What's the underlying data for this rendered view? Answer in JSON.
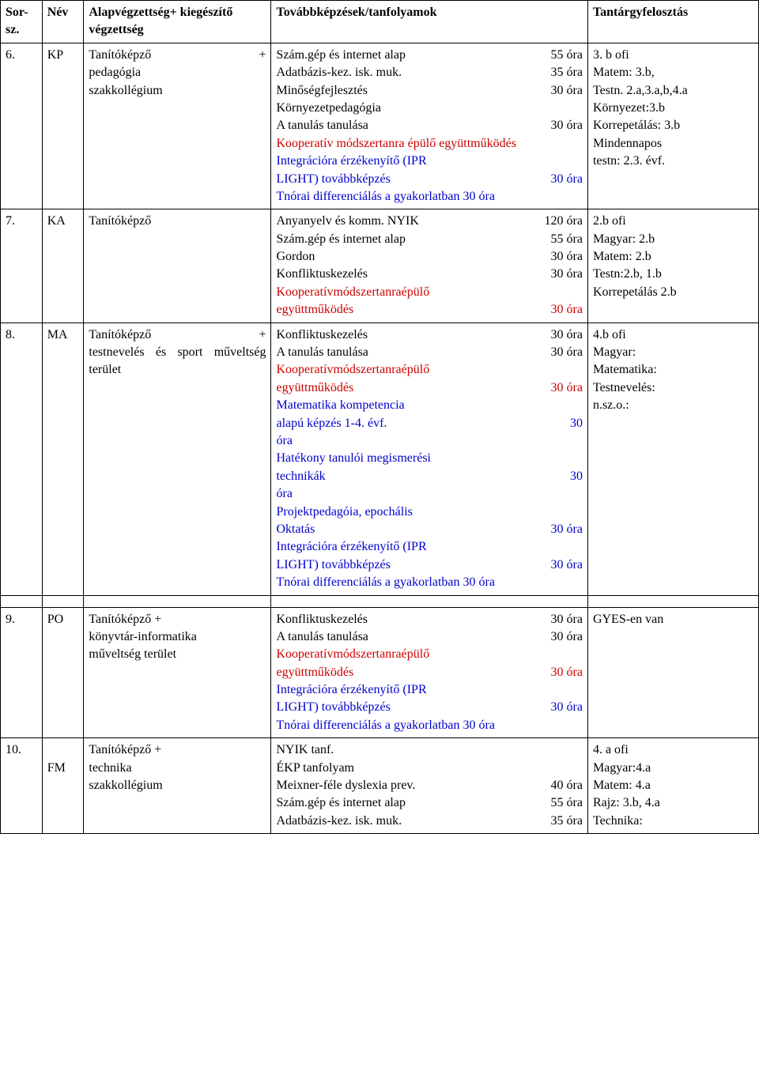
{
  "columns": {
    "sorsz": "Sor-\nsz.",
    "nev": "Név",
    "alap": "Alapvégzettség+ kiegészítő végzettség",
    "tov": "Továbbképzések/tanfolyamok",
    "tant": "Tantárgyfelosztás"
  },
  "rows": [
    {
      "sorsz": "6.",
      "nev": "KP",
      "alap_lines": [
        {
          "row": {
            "left": "Tanítóképző",
            "right": "+"
          }
        },
        "pedagógia",
        "szakkollégium"
      ],
      "tov_lines": [
        {
          "row": {
            "lbl": "Szám.gép és internet alap",
            "hrs": "55 óra"
          }
        },
        {
          "row": {
            "lbl": "Adatbázis-kez. isk. muk.",
            "hrs": "35 óra"
          }
        },
        {
          "row": {
            "lbl": "Minőségfejlesztés",
            "hrs": "30 óra"
          }
        },
        "Környezetpedagógia",
        {
          "row": {
            "lbl": "A tanulás tanulása",
            "hrs": "30 óra"
          }
        },
        {
          "class": "red just",
          "text": "Kooperatív módszertanra épülő együttműködés"
        },
        {
          "class": "blue",
          "text": "Integrációra érzékenyítő (IPR"
        },
        {
          "class": "blue",
          "row": {
            "lbl": "LIGHT) továbbképzés",
            "hrs": "30 óra"
          }
        },
        {
          "class": "blue just",
          "text": "Tnórai differenciálás a gyakorlatban 30 óra"
        }
      ],
      "tant_lines": [
        "3. b ofi",
        "Matem: 3.b,",
        "Testn. 2.a,3.a,b,4.a",
        "Környezet:3.b",
        "Korrepetálás: 3.b",
        "Mindennapos",
        "testn: 2.3. évf."
      ]
    },
    {
      "sorsz": "7.",
      "nev": "KA",
      "alap_lines": [
        "Tanítóképző"
      ],
      "tov_lines": [
        {
          "row": {
            "lbl": "Anyanyelv és komm. NYIK",
            "hrs": "120 óra"
          }
        },
        {
          "row": {
            "lbl": "Szám.gép és internet alap",
            "hrs": "55 óra"
          }
        },
        {
          "row": {
            "lbl": "Gordon",
            "hrs": "30 óra"
          }
        },
        {
          "row": {
            "lbl": "Konfliktuskezelés",
            "hrs": "30 óra"
          }
        },
        {
          "class": "red",
          "row_just": {
            "lbl": "Kooperatív módszertanra épülő együttműködés",
            "hrs": "30 óra"
          }
        }
      ],
      "tant_lines": [
        "2.b ofi",
        "Magyar: 2.b",
        "Matem: 2.b",
        "Testn:2.b, 1.b",
        "Korrepetálás 2.b"
      ]
    },
    {
      "sorsz": "8.",
      "nev": "MA",
      "alap_lines": [
        {
          "row": {
            "left": "Tanítóképző",
            "right": "+"
          }
        },
        {
          "just": "testnevelés és sport műveltség terület"
        }
      ],
      "tov_lines": [
        {
          "row": {
            "lbl": "Konfliktuskezelés",
            "hrs": "30 óra"
          }
        },
        {
          "row": {
            "lbl": "A tanulás tanulása",
            "hrs": "30 óra"
          }
        },
        {
          "class": "red",
          "row_just": {
            "lbl": "Kooperatív módszertanra épülő együttműködés",
            "hrs": "30 óra"
          }
        },
        {
          "class": "blue",
          "text": "Matematika kompetencia"
        },
        {
          "class": "blue",
          "row": {
            "lbl": " alapú képzés 1-4. évf.",
            "hrs": "30"
          }
        },
        {
          "class": "blue",
          "text": "óra"
        },
        {
          "class": "blue",
          "text": "Hatékony tanulói megismerési"
        },
        {
          "class": "blue",
          "row": {
            "lbl": " technikák",
            "hrs": "30"
          }
        },
        {
          "class": "blue",
          "text": "óra"
        },
        {
          "class": "blue",
          "text": "Projektpedagóia, epochális"
        },
        {
          "class": "blue",
          "row": {
            "lbl": "Oktatás",
            "hrs": "30 óra"
          }
        },
        {
          "class": "blue",
          "text": "Integrációra érzékenyítő (IPR"
        },
        {
          "class": "blue",
          "row": {
            "lbl": "LIGHT) továbbképzés",
            "hrs": "30 óra"
          }
        },
        {
          "class": "blue just",
          "text": "Tnórai differenciálás a gyakorlatban 30 óra"
        }
      ],
      "tant_lines": [
        "4.b ofi",
        "Magyar:",
        "Matematika:",
        "Testnevelés:",
        "n.sz.o.:"
      ]
    },
    {
      "sorsz": "9.",
      "nev": "PO",
      "alap_lines": [
        "Tanítóképző +",
        "könyvtár-informatika",
        "műveltség terület"
      ],
      "tov_lines": [
        {
          "row": {
            "lbl": "Konfliktuskezelés",
            "hrs": "30 óra"
          }
        },
        {
          "row": {
            "lbl": "A tanulás tanulása",
            "hrs": "30 óra"
          }
        },
        {
          "class": "red",
          "row_just": {
            "lbl": "Kooperatív módszertanra épülő együttműködés",
            "hrs": "30 óra"
          }
        },
        {
          "class": "blue",
          "text": "Integrációra érzékenyítő (IPR"
        },
        {
          "class": "blue",
          "row": {
            "lbl": "LIGHT) továbbképzés",
            "hrs": "30 óra"
          }
        },
        {
          "class": "blue just",
          "text": "Tnórai differenciálás a gyakorlatban 30 óra"
        }
      ],
      "tant_lines": [
        "GYES-en van"
      ]
    },
    {
      "sorsz": "10.",
      "nev": "FM",
      "nev_offset": true,
      "alap_lines": [
        "Tanítóképző +",
        "technika",
        "szakkollégium"
      ],
      "tov_lines": [
        "NYIK tanf.",
        "ÉKP tanfolyam",
        {
          "row": {
            "lbl": "Meixner-féle dyslexia prev.",
            "hrs": "40 óra"
          }
        },
        {
          "row": {
            "lbl": "Szám.gép és internet alap",
            "hrs": "55 óra"
          }
        },
        {
          "row": {
            "lbl": "Adatbázis-kez. isk. muk.",
            "hrs": "35 óra"
          }
        }
      ],
      "tant_lines": [
        "4. a ofi",
        "Magyar:4.a",
        "Matem: 4.a",
        "Rajz: 3.b, 4.a",
        "Technika:"
      ]
    }
  ],
  "gap_after_index": 2
}
